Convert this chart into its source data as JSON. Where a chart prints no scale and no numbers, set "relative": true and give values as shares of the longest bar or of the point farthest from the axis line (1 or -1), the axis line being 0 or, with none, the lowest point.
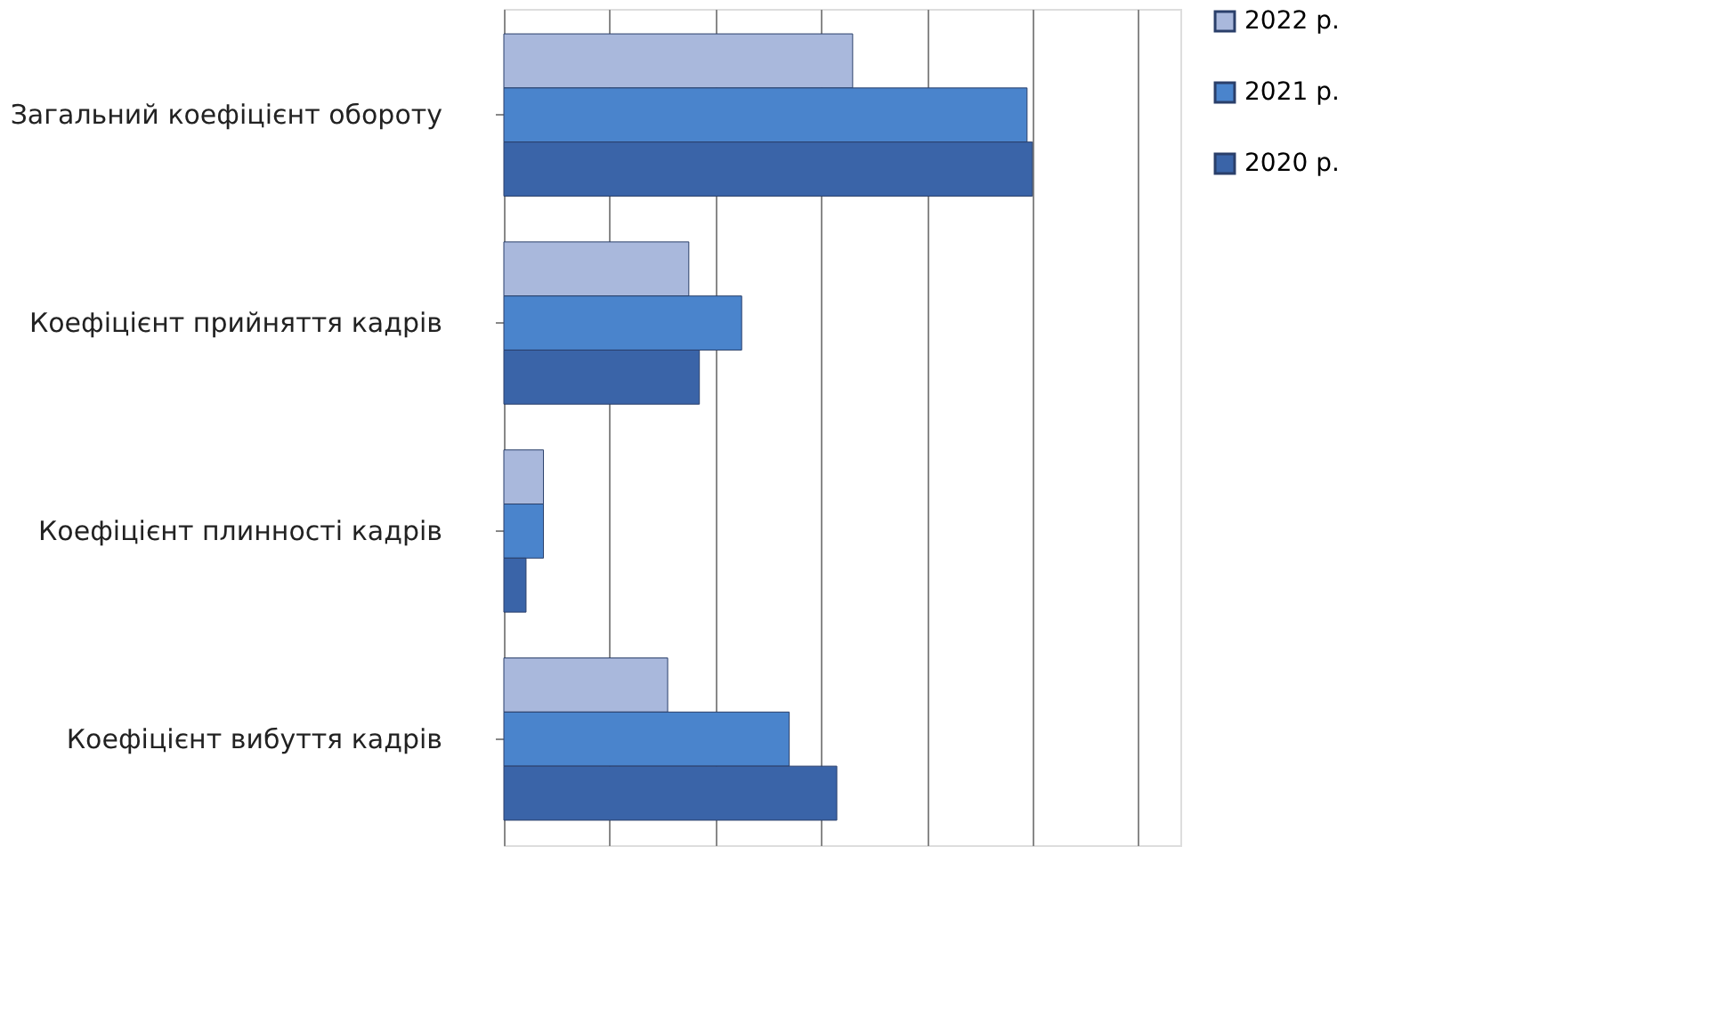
{
  "chart_data": {
    "type": "bar",
    "orientation": "horizontal",
    "relative": true,
    "grid": "x",
    "legend": "right",
    "categories": [
      "Загальний коефіцієнт обороту",
      "Коефіцієнт прийняття кадрів",
      "Коефіцієнт плинності кадрів",
      "Коефіцієнт вибуття кадрів"
    ],
    "series": [
      {
        "name": "2022 р.",
        "color": "#a9b8dc",
        "values": [
          0.66,
          0.35,
          0.075,
          0.31
        ]
      },
      {
        "name": "2021 р.",
        "color": "#4a84cc",
        "values": [
          0.99,
          0.45,
          0.075,
          0.54
        ]
      },
      {
        "name": "2020 р.",
        "color": "#3a64a8",
        "values": [
          1,
          0.37,
          0.042,
          0.63
        ]
      }
    ]
  }
}
